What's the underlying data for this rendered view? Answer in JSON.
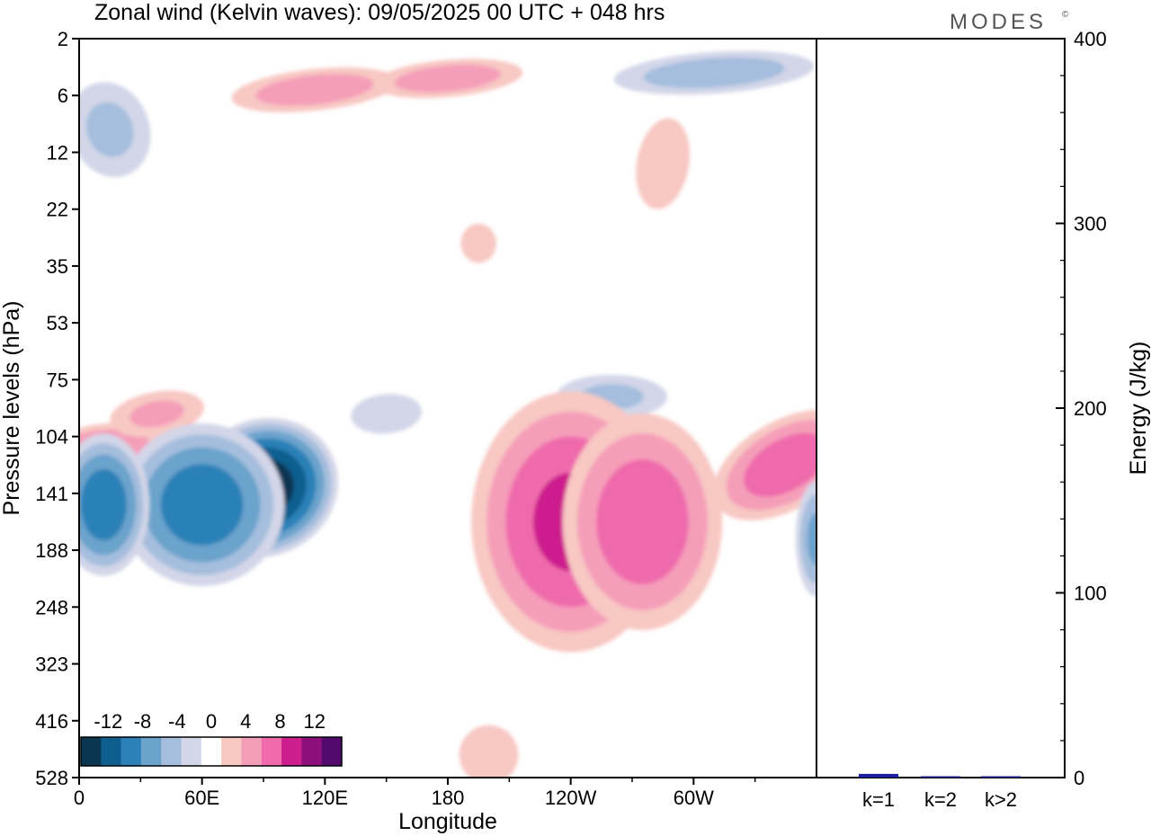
{
  "title": "Zonal wind (Kelvin waves):  09/05/2025  00 UTC  + 048 hrs",
  "brand": "MODES",
  "brand_mark": "©",
  "colors": {
    "neg": [
      "#0b3652",
      "#0e5f8f",
      "#2c81b8",
      "#6aa3cc",
      "#a5bedd",
      "#d3d6e8"
    ],
    "pos": [
      "#f8c8c3",
      "#f59eb9",
      "#ef6bac",
      "#cc1f8d",
      "#8d0f7c",
      "#520a6e"
    ],
    "frame": "#000000",
    "bar": "#1c1fa0"
  },
  "chart_data": [
    {
      "type": "heatmap",
      "name": "zonal-wind-longitude-pressure",
      "xlabel": "Longitude",
      "ylabel": "Pressure levels (hPa)",
      "x_ticks": [
        "0",
        "60E",
        "120E",
        "180",
        "120W",
        "60W"
      ],
      "x_tick_values": [
        0,
        60,
        120,
        180,
        240,
        300
      ],
      "xlim": [
        0,
        360
      ],
      "y_ticks": [
        "2",
        "6",
        "12",
        "22",
        "35",
        "53",
        "75",
        "104",
        "141",
        "188",
        "248",
        "323",
        "416",
        "528"
      ],
      "colorbar": {
        "levels": [
          -14,
          -12,
          -10,
          -8,
          -6,
          -4,
          -2,
          2,
          4,
          6,
          8,
          10,
          12,
          14
        ],
        "labels": [
          "-12",
          "-8",
          "-4",
          "0",
          "4",
          "8",
          "12"
        ],
        "label_values": [
          -12,
          -8,
          -4,
          0,
          4,
          8,
          12
        ]
      },
      "features": [
        {
          "lon": 10,
          "level": 7.25,
          "value": 6
        },
        {
          "lon": 38,
          "level": 6.6,
          "value": 4
        },
        {
          "lon": 90,
          "level": 7.9,
          "value": -13
        },
        {
          "lon": 60,
          "level": 8.2,
          "value": -9
        },
        {
          "lon": 12,
          "level": 8.2,
          "value": -9
        },
        {
          "lon": 150,
          "level": 6.6,
          "value": -2
        },
        {
          "lon": 260,
          "level": 6.3,
          "value": -4
        },
        {
          "lon": 240,
          "level": 8.5,
          "value": 8
        },
        {
          "lon": 275,
          "level": 8.5,
          "value": 7
        },
        {
          "lon": 345,
          "level": 7.5,
          "value": 7
        },
        {
          "lon": 360,
          "level": 8.8,
          "value": -6
        },
        {
          "lon": 115,
          "level": 0.9,
          "value": 5
        },
        {
          "lon": 180,
          "level": 0.7,
          "value": 5
        },
        {
          "lon": 310,
          "level": 0.6,
          "value": -5
        },
        {
          "lon": 15,
          "level": 1.6,
          "value": -4
        },
        {
          "lon": 285,
          "level": 2.2,
          "value": 2
        },
        {
          "lon": 195,
          "level": 3.6,
          "value": 2
        },
        {
          "lon": 200,
          "level": 12.6,
          "value": 2
        }
      ]
    },
    {
      "type": "bar",
      "name": "kelvin-energy",
      "ylabel": "Energy (J/kg)",
      "categories": [
        "k=1",
        "k=2",
        "k>2"
      ],
      "values": [
        2,
        0.3,
        0.1
      ],
      "ylim": [
        0,
        400
      ],
      "y_ticks": [
        "0",
        "100",
        "200",
        "300",
        "400"
      ],
      "y_tick_values": [
        0,
        100,
        200,
        300,
        400
      ]
    }
  ]
}
